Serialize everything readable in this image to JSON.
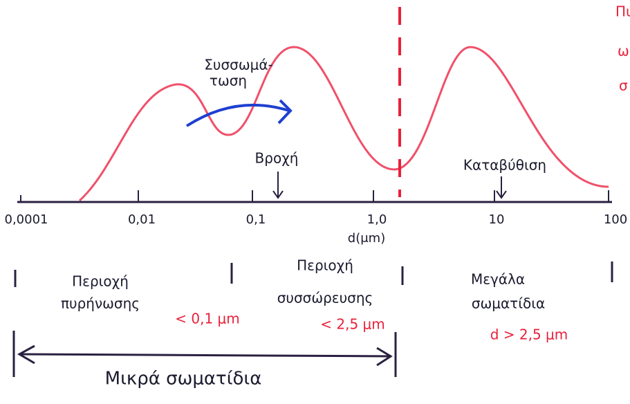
{
  "axis": {
    "ticks": [
      "0,0001",
      "0,01",
      "0,1",
      "1,0",
      "10",
      "100"
    ],
    "label": "d(μm)"
  },
  "annotations": {
    "coagulation": [
      "Συσσωμά-",
      "τωση"
    ],
    "rain": "Βροχή",
    "sedimentation": "Καταβύθιση",
    "top_right": [
      "Πι",
      "ω",
      "σ"
    ]
  },
  "regions": {
    "nucleation": [
      "Περιοχή",
      "πυρήνωσης"
    ],
    "nucleation_size": "< 0,1 μm",
    "accumulation": [
      "Περιοχή",
      "συσσώρευσης"
    ],
    "accumulation_size": "< 2,5 μm",
    "large": [
      "Μεγάλα",
      "σωματίδια"
    ],
    "large_size": "d > 2,5 μm",
    "small": "Μικρά σωματίδια"
  }
}
